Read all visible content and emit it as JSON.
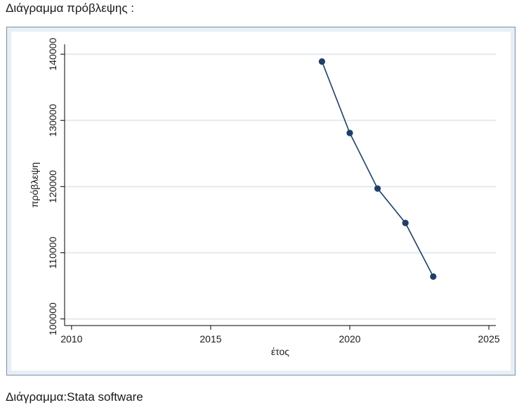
{
  "page": {
    "heading": "Διάγραμμα πρόβλεψης :",
    "caption": "Διάγραμμα:Stata software"
  },
  "colors": {
    "plot_background": "#ffffff",
    "outer_background": "#e8eff4",
    "gridline": "#e3eaf0",
    "series": "#1f3f66",
    "axis": "#000000"
  },
  "chart_data": {
    "type": "line",
    "title": "",
    "xlabel": "έτος",
    "ylabel": "πρόβλεψη",
    "xlim": [
      2009.75,
      2025.25
    ],
    "ylim": [
      99000,
      141500
    ],
    "xticks": [
      2010,
      2015,
      2020,
      2025
    ],
    "yticks": [
      100000,
      110000,
      120000,
      130000,
      140000
    ],
    "grid": true,
    "series": [
      {
        "x": [
          2019,
          2020,
          2021,
          2022,
          2023
        ],
        "y": [
          138900,
          128100,
          119700,
          114500,
          106400
        ],
        "markers": true
      }
    ]
  }
}
